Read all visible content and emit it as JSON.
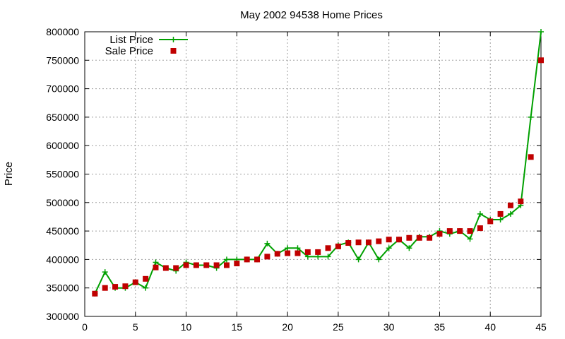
{
  "chart_data": {
    "type": "line",
    "title": "May 2002 94538 Home Prices",
    "xlabel": "",
    "ylabel": "Price",
    "xlim": [
      0,
      45
    ],
    "ylim": [
      300000,
      800000
    ],
    "x_ticks": [
      0,
      5,
      10,
      15,
      20,
      25,
      30,
      35,
      40,
      45
    ],
    "y_ticks": [
      300000,
      350000,
      400000,
      450000,
      500000,
      550000,
      600000,
      650000,
      700000,
      750000,
      800000
    ],
    "grid": true,
    "legend_position": "top-left",
    "colors": {
      "list": "#00a000",
      "sale": "#c00000",
      "grid": "#a0a0a0",
      "axis": "#000000"
    },
    "x": [
      1,
      2,
      3,
      4,
      5,
      6,
      7,
      8,
      9,
      10,
      11,
      12,
      13,
      14,
      15,
      16,
      17,
      18,
      19,
      20,
      21,
      22,
      23,
      24,
      25,
      26,
      27,
      28,
      29,
      30,
      31,
      32,
      33,
      34,
      35,
      36,
      37,
      38,
      39,
      40,
      41,
      42,
      43,
      44,
      45
    ],
    "series": [
      {
        "name": "List Price",
        "marker": "plus",
        "values": [
          340000,
          378000,
          350000,
          350000,
          360000,
          350000,
          395000,
          385000,
          380000,
          395000,
          390000,
          390000,
          385000,
          400000,
          400000,
          400000,
          400000,
          428000,
          410000,
          420000,
          420000,
          405000,
          405000,
          405000,
          425000,
          430000,
          400000,
          430000,
          400000,
          420000,
          435000,
          420000,
          440000,
          440000,
          450000,
          445000,
          450000,
          436000,
          480000,
          470000,
          470000,
          480000,
          495000,
          650000,
          800000
        ]
      },
      {
        "name": "Sale Price",
        "marker": "square",
        "values": [
          340000,
          350000,
          352000,
          353000,
          360000,
          366000,
          386000,
          385000,
          385000,
          390000,
          390000,
          390000,
          390000,
          390000,
          393000,
          400000,
          400000,
          405000,
          410000,
          411000,
          411000,
          413000,
          413000,
          420000,
          423000,
          429000,
          430000,
          430000,
          432000,
          435000,
          435000,
          438000,
          438000,
          438000,
          445000,
          450000,
          450000,
          450000,
          455000,
          467000,
          480000,
          495000,
          502000,
          580000,
          750000
        ]
      }
    ]
  }
}
